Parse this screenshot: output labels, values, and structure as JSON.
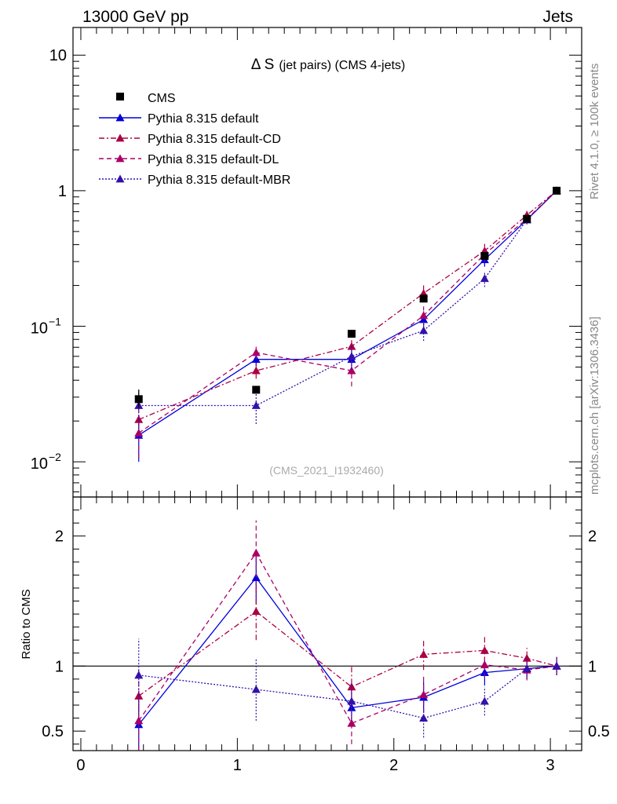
{
  "header": {
    "left": "13000 GeV pp",
    "right": "Jets"
  },
  "side_text": {
    "top": "Rivet 4.1.0, ≥ 100k events",
    "bottom": "mcplots.cern.ch [arXiv:1306.3436]"
  },
  "chart_data": {
    "type": "line",
    "title_main": "Δ S",
    "title_suffix": "(jet pairs) (CMS 4-jets)",
    "watermark": "(CMS_2021_I1932460)",
    "x": [
      0.37,
      1.12,
      1.73,
      2.19,
      2.58,
      2.85,
      3.04
    ],
    "xlim": [
      -0.05,
      3.2
    ],
    "x_ticks": [
      "0",
      "1",
      "2",
      "3"
    ],
    "upper_panel": {
      "scale": "log",
      "ylim": [
        0.0055,
        16
      ],
      "y_ticks": [
        {
          "value": 0.01,
          "base": "10",
          "exp": "−2"
        },
        {
          "value": 0.1,
          "base": "10",
          "exp": "−1"
        },
        {
          "value": 1,
          "label": "1"
        },
        {
          "value": 10,
          "label": "10"
        }
      ]
    },
    "ratio_panel": {
      "ylabel": "Ratio to CMS",
      "ylim": [
        0.35,
        2.3
      ],
      "y_ticks": [
        "0.5",
        "1",
        "2"
      ],
      "reference_line": 1
    },
    "data": {
      "name": "CMS",
      "values": [
        0.029,
        0.034,
        0.088,
        0.16,
        0.33,
        0.62,
        1.0
      ],
      "err_lo": [
        0.004,
        0.002,
        0.005,
        0.01,
        0.02,
        0.03,
        0.02
      ],
      "err_hi": [
        0.005,
        0.002,
        0.005,
        0.01,
        0.02,
        0.03,
        0.02
      ]
    },
    "series": [
      {
        "name": "Pythia 8.315 default",
        "color": "#0000dd",
        "dash": "solid",
        "values": [
          0.0157,
          0.057,
          0.057,
          0.112,
          0.31,
          0.61,
          1.0
        ],
        "err_lo": [
          0.0057,
          0.006,
          0.012,
          0.017,
          0.035,
          0.04,
          0.03
        ],
        "err_hi": [
          0.0057,
          0.006,
          0.012,
          0.017,
          0.035,
          0.04,
          0.03
        ],
        "ratio": [
          0.55,
          1.68,
          0.68,
          0.76,
          0.95,
          0.98,
          1.0
        ],
        "ratio_err": [
          0.2,
          0.2,
          0.14,
          0.12,
          0.1,
          0.07,
          0.07
        ]
      },
      {
        "name": "Pythia 8.315 default-CD",
        "color": "#aa0044",
        "dash": "dashdot",
        "values": [
          0.0205,
          0.047,
          0.071,
          0.175,
          0.36,
          0.66,
          1.0
        ],
        "err_lo": [
          0.005,
          0.006,
          0.012,
          0.025,
          0.045,
          0.05,
          0.03
        ],
        "err_hi": [
          0.005,
          0.006,
          0.012,
          0.025,
          0.045,
          0.05,
          0.03
        ],
        "ratio": [
          0.77,
          1.42,
          0.84,
          1.09,
          1.12,
          1.06,
          1.0
        ],
        "ratio_err": [
          0.2,
          0.22,
          0.16,
          0.12,
          0.12,
          0.08,
          0.07
        ]
      },
      {
        "name": "Pythia 8.315 default-DL",
        "color": "#aa0066",
        "dash": "dashed",
        "values": [
          0.0163,
          0.064,
          0.047,
          0.12,
          0.34,
          0.62,
          1.0
        ],
        "err_lo": [
          0.0057,
          0.007,
          0.011,
          0.02,
          0.04,
          0.045,
          0.03
        ],
        "err_hi": [
          0.0057,
          0.007,
          0.011,
          0.02,
          0.04,
          0.045,
          0.03
        ],
        "ratio": [
          0.58,
          1.87,
          0.56,
          0.78,
          1.01,
          0.97,
          1.0
        ],
        "ratio_err": [
          0.25,
          0.25,
          0.16,
          0.14,
          0.1,
          0.08,
          0.07
        ]
      },
      {
        "name": "Pythia 8.315 default-MBR",
        "color": "#3311aa",
        "dash": "dotted",
        "values": [
          0.026,
          0.026,
          0.06,
          0.093,
          0.225,
          0.61,
          1.0
        ],
        "err_lo": [
          0.0085,
          0.007,
          0.012,
          0.015,
          0.03,
          0.045,
          0.03
        ],
        "err_hi": [
          0.0085,
          0.007,
          0.012,
          0.015,
          0.03,
          0.045,
          0.03
        ],
        "ratio": [
          0.93,
          0.82,
          0.73,
          0.6,
          0.73,
          0.98,
          1.0
        ],
        "ratio_err": [
          0.28,
          0.24,
          0.14,
          0.15,
          0.11,
          0.08,
          0.07
        ]
      }
    ]
  }
}
